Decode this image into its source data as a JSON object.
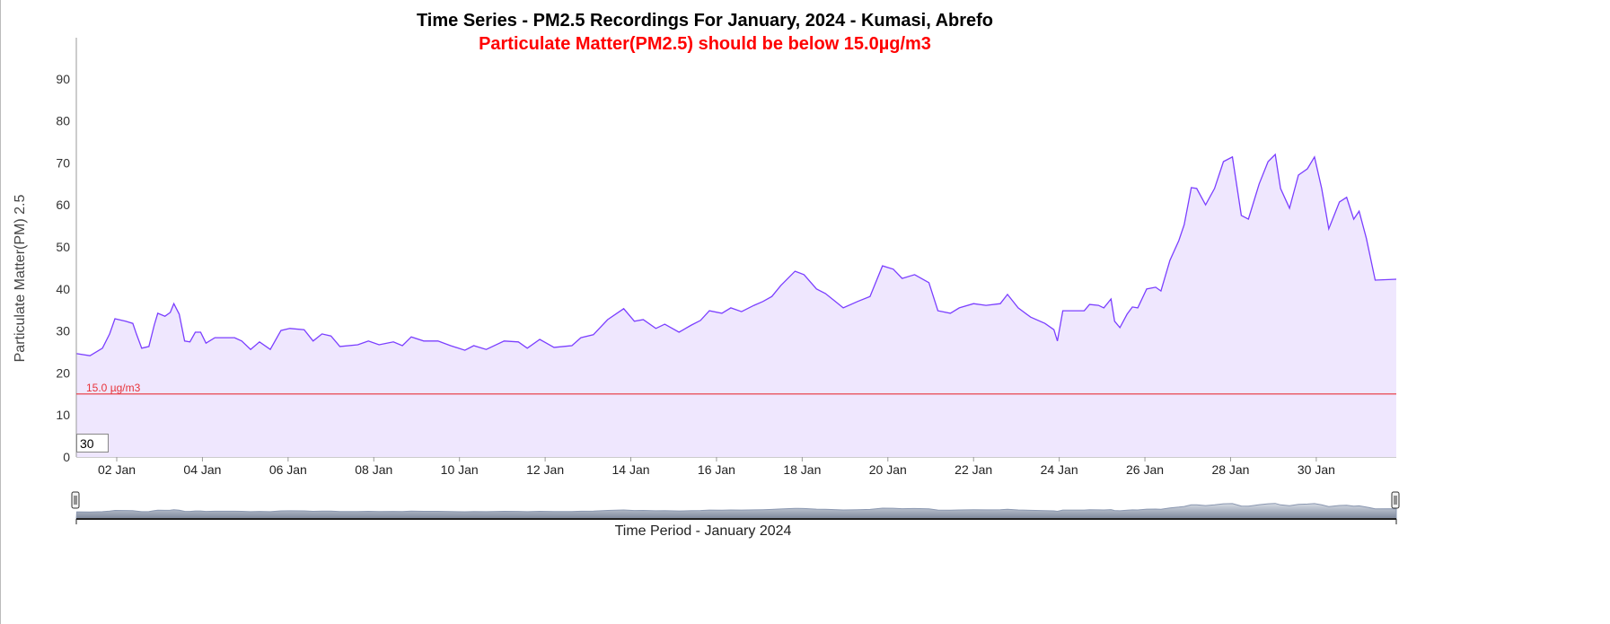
{
  "title": "Time Series - PM2.5 Recordings For January, 2024 - Kumasi, Abrefo",
  "subtitle": "Particulate Matter(PM2.5) should be below 15.0µg/m3",
  "range_input_value": "30",
  "colors": {
    "line": "#7b3fff",
    "fill": "#efe7fe",
    "threshold": "#e8333a",
    "subtitle": "#ff0000",
    "navigator": "#8a97b0"
  },
  "chart_data": {
    "type": "area",
    "title": "Time Series - PM2.5 Recordings For January, 2024 - Kumasi, Abrefo",
    "subtitle": "Particulate Matter(PM2.5) should be below 15.0µg/m3",
    "xlabel": "Time Period - January 2024",
    "ylabel": "Particulate Matter(PM) 2.5",
    "ylim": [
      0,
      99
    ],
    "yticks": [
      0,
      10,
      20,
      30,
      40,
      50,
      60,
      70,
      80,
      90
    ],
    "xticks": [
      "02 Jan",
      "04 Jan",
      "06 Jan",
      "08 Jan",
      "10 Jan",
      "12 Jan",
      "14 Jan",
      "16 Jan",
      "18 Jan",
      "20 Jan",
      "22 Jan",
      "24 Jan",
      "26 Jan",
      "28 Jan",
      "30 Jan"
    ],
    "xlim": [
      "2024-01-01 00:00",
      "2024-01-31 21:00"
    ],
    "grid": false,
    "threshold": {
      "value": 15.0,
      "label": "15.0 µg/m3"
    },
    "x": [
      "2024-01-01 02:00",
      "2024-01-01 09:00",
      "2024-01-01 16:00",
      "2024-01-01 20:00",
      "2024-01-01 23:00",
      "2024-01-02 05:00",
      "2024-01-02 09:00",
      "2024-01-02 11:00",
      "2024-01-02 14:00",
      "2024-01-02 18:00",
      "2024-01-02 21:00",
      "2024-01-02 23:00",
      "2024-01-03 03:00",
      "2024-01-03 06:00",
      "2024-01-03 08:00",
      "2024-01-03 11:00",
      "2024-01-03 14:00",
      "2024-01-03 17:00",
      "2024-01-03 20:00",
      "2024-01-03 23:00",
      "2024-01-04 02:00",
      "2024-01-04 07:00",
      "2024-01-04 18:00",
      "2024-01-04 22:00",
      "2024-01-05 03:00",
      "2024-01-05 08:00",
      "2024-01-05 14:00",
      "2024-01-05 20:00",
      "2024-01-06 01:00",
      "2024-01-06 09:00",
      "2024-01-06 14:00",
      "2024-01-06 19:00",
      "2024-01-07 00:00",
      "2024-01-07 05:00",
      "2024-01-07 15:00",
      "2024-01-07 21:00",
      "2024-01-08 03:00",
      "2024-01-08 11:00",
      "2024-01-08 16:00",
      "2024-01-08 21:00",
      "2024-01-09 04:00",
      "2024-01-09 12:00",
      "2024-01-09 19:00",
      "2024-01-10 03:00",
      "2024-01-10 08:00",
      "2024-01-10 15:00",
      "2024-01-11 01:00",
      "2024-01-11 09:00",
      "2024-01-11 14:00",
      "2024-01-11 21:00",
      "2024-01-12 05:00",
      "2024-01-12 15:00",
      "2024-01-12 20:00",
      "2024-01-13 03:00",
      "2024-01-13 11:00",
      "2024-01-13 20:00",
      "2024-01-14 02:00",
      "2024-01-14 07:00",
      "2024-01-14 14:00",
      "2024-01-14 19:00",
      "2024-01-15 03:00",
      "2024-01-15 10:00",
      "2024-01-15 15:00",
      "2024-01-15 20:00",
      "2024-01-16 03:00",
      "2024-01-16 08:00",
      "2024-01-16 14:00",
      "2024-01-16 21:00",
      "2024-01-17 02:00",
      "2024-01-17 07:00",
      "2024-01-17 12:00",
      "2024-01-17 20:00",
      "2024-01-18 01:00",
      "2024-01-18 08:00",
      "2024-01-18 13:00",
      "2024-01-18 18:00",
      "2024-01-18 23:00",
      "2024-01-19 07:00",
      "2024-01-19 14:00",
      "2024-01-19 21:00",
      "2024-01-20 03:00",
      "2024-01-20 08:00",
      "2024-01-20 15:00",
      "2024-01-20 23:00",
      "2024-01-21 04:00",
      "2024-01-21 11:00",
      "2024-01-21 16:00",
      "2024-01-22 00:00",
      "2024-01-22 07:00",
      "2024-01-22 15:00",
      "2024-01-22 19:00",
      "2024-01-23 01:00",
      "2024-01-23 08:00",
      "2024-01-23 16:00",
      "2024-01-23 21:00",
      "2024-01-23 23:00",
      "2024-01-24 02:00",
      "2024-01-24 09:00",
      "2024-01-24 14:00",
      "2024-01-24 17:00",
      "2024-01-24 22:00",
      "2024-01-25 01:00",
      "2024-01-25 05:00",
      "2024-01-25 07:00",
      "2024-01-25 10:00",
      "2024-01-25 14:00",
      "2024-01-25 17:00",
      "2024-01-25 20:00",
      "2024-01-26 01:00",
      "2024-01-26 06:00",
      "2024-01-26 09:00",
      "2024-01-26 14:00",
      "2024-01-26 19:00",
      "2024-01-26 22:00",
      "2024-01-27 02:00",
      "2024-01-27 05:00",
      "2024-01-27 10:00",
      "2024-01-27 15:00",
      "2024-01-27 20:00",
      "2024-01-28 01:00",
      "2024-01-28 06:00",
      "2024-01-28 10:00",
      "2024-01-28 16:00",
      "2024-01-28 21:00",
      "2024-01-29 01:00",
      "2024-01-29 04:00",
      "2024-01-29 09:00",
      "2024-01-29 14:00",
      "2024-01-29 19:00",
      "2024-01-29 23:00",
      "2024-01-30 03:00",
      "2024-01-30 07:00",
      "2024-01-30 13:00",
      "2024-01-30 17:00",
      "2024-01-30 21:00",
      "2024-01-31 00:00",
      "2024-01-31 04:00",
      "2024-01-31 09:00",
      "2024-01-31 16:00"
    ],
    "series": [
      {
        "values": [
          24.6,
          24.1,
          25.9,
          29.3,
          32.9,
          32.3,
          31.8,
          29.3,
          25.9,
          26.3,
          31.4,
          34.2,
          33.5,
          34.4,
          36.5,
          34.0,
          27.6,
          27.4,
          29.7,
          29.7,
          27.1,
          28.4,
          28.4,
          27.6,
          25.6,
          27.4,
          25.6,
          30.1,
          30.6,
          30.3,
          27.6,
          29.3,
          28.8,
          26.3,
          26.7,
          27.6,
          26.7,
          27.4,
          26.5,
          28.6,
          27.6,
          27.6,
          26.5,
          25.4,
          26.5,
          25.6,
          27.6,
          27.4,
          25.9,
          28.0,
          26.1,
          26.5,
          28.4,
          29.1,
          32.7,
          35.3,
          32.3,
          32.7,
          30.6,
          31.6,
          29.7,
          31.4,
          32.5,
          34.8,
          34.2,
          35.5,
          34.6,
          36.1,
          37.0,
          38.2,
          40.8,
          44.2,
          43.4,
          40.0,
          38.9,
          37.2,
          35.5,
          37.0,
          38.2,
          45.5,
          44.7,
          42.5,
          43.4,
          41.5,
          34.8,
          34.2,
          35.5,
          36.5,
          36.1,
          36.5,
          38.7,
          35.5,
          33.3,
          31.8,
          30.3,
          27.6,
          34.8,
          34.8,
          34.8,
          36.3,
          36.1,
          35.5,
          37.6,
          32.3,
          30.8,
          34.0,
          35.7,
          35.5,
          40.0,
          40.4,
          39.5,
          46.8,
          51.5,
          55.3,
          64.1,
          63.9,
          60.0,
          63.9,
          70.3,
          71.4,
          57.5,
          56.6,
          65.0,
          70.3,
          72.0,
          63.9,
          59.2,
          67.1,
          68.6,
          71.4,
          63.9,
          54.3,
          60.7,
          61.8,
          56.6,
          58.5,
          52.1,
          42.1,
          42.3
        ]
      }
    ]
  }
}
